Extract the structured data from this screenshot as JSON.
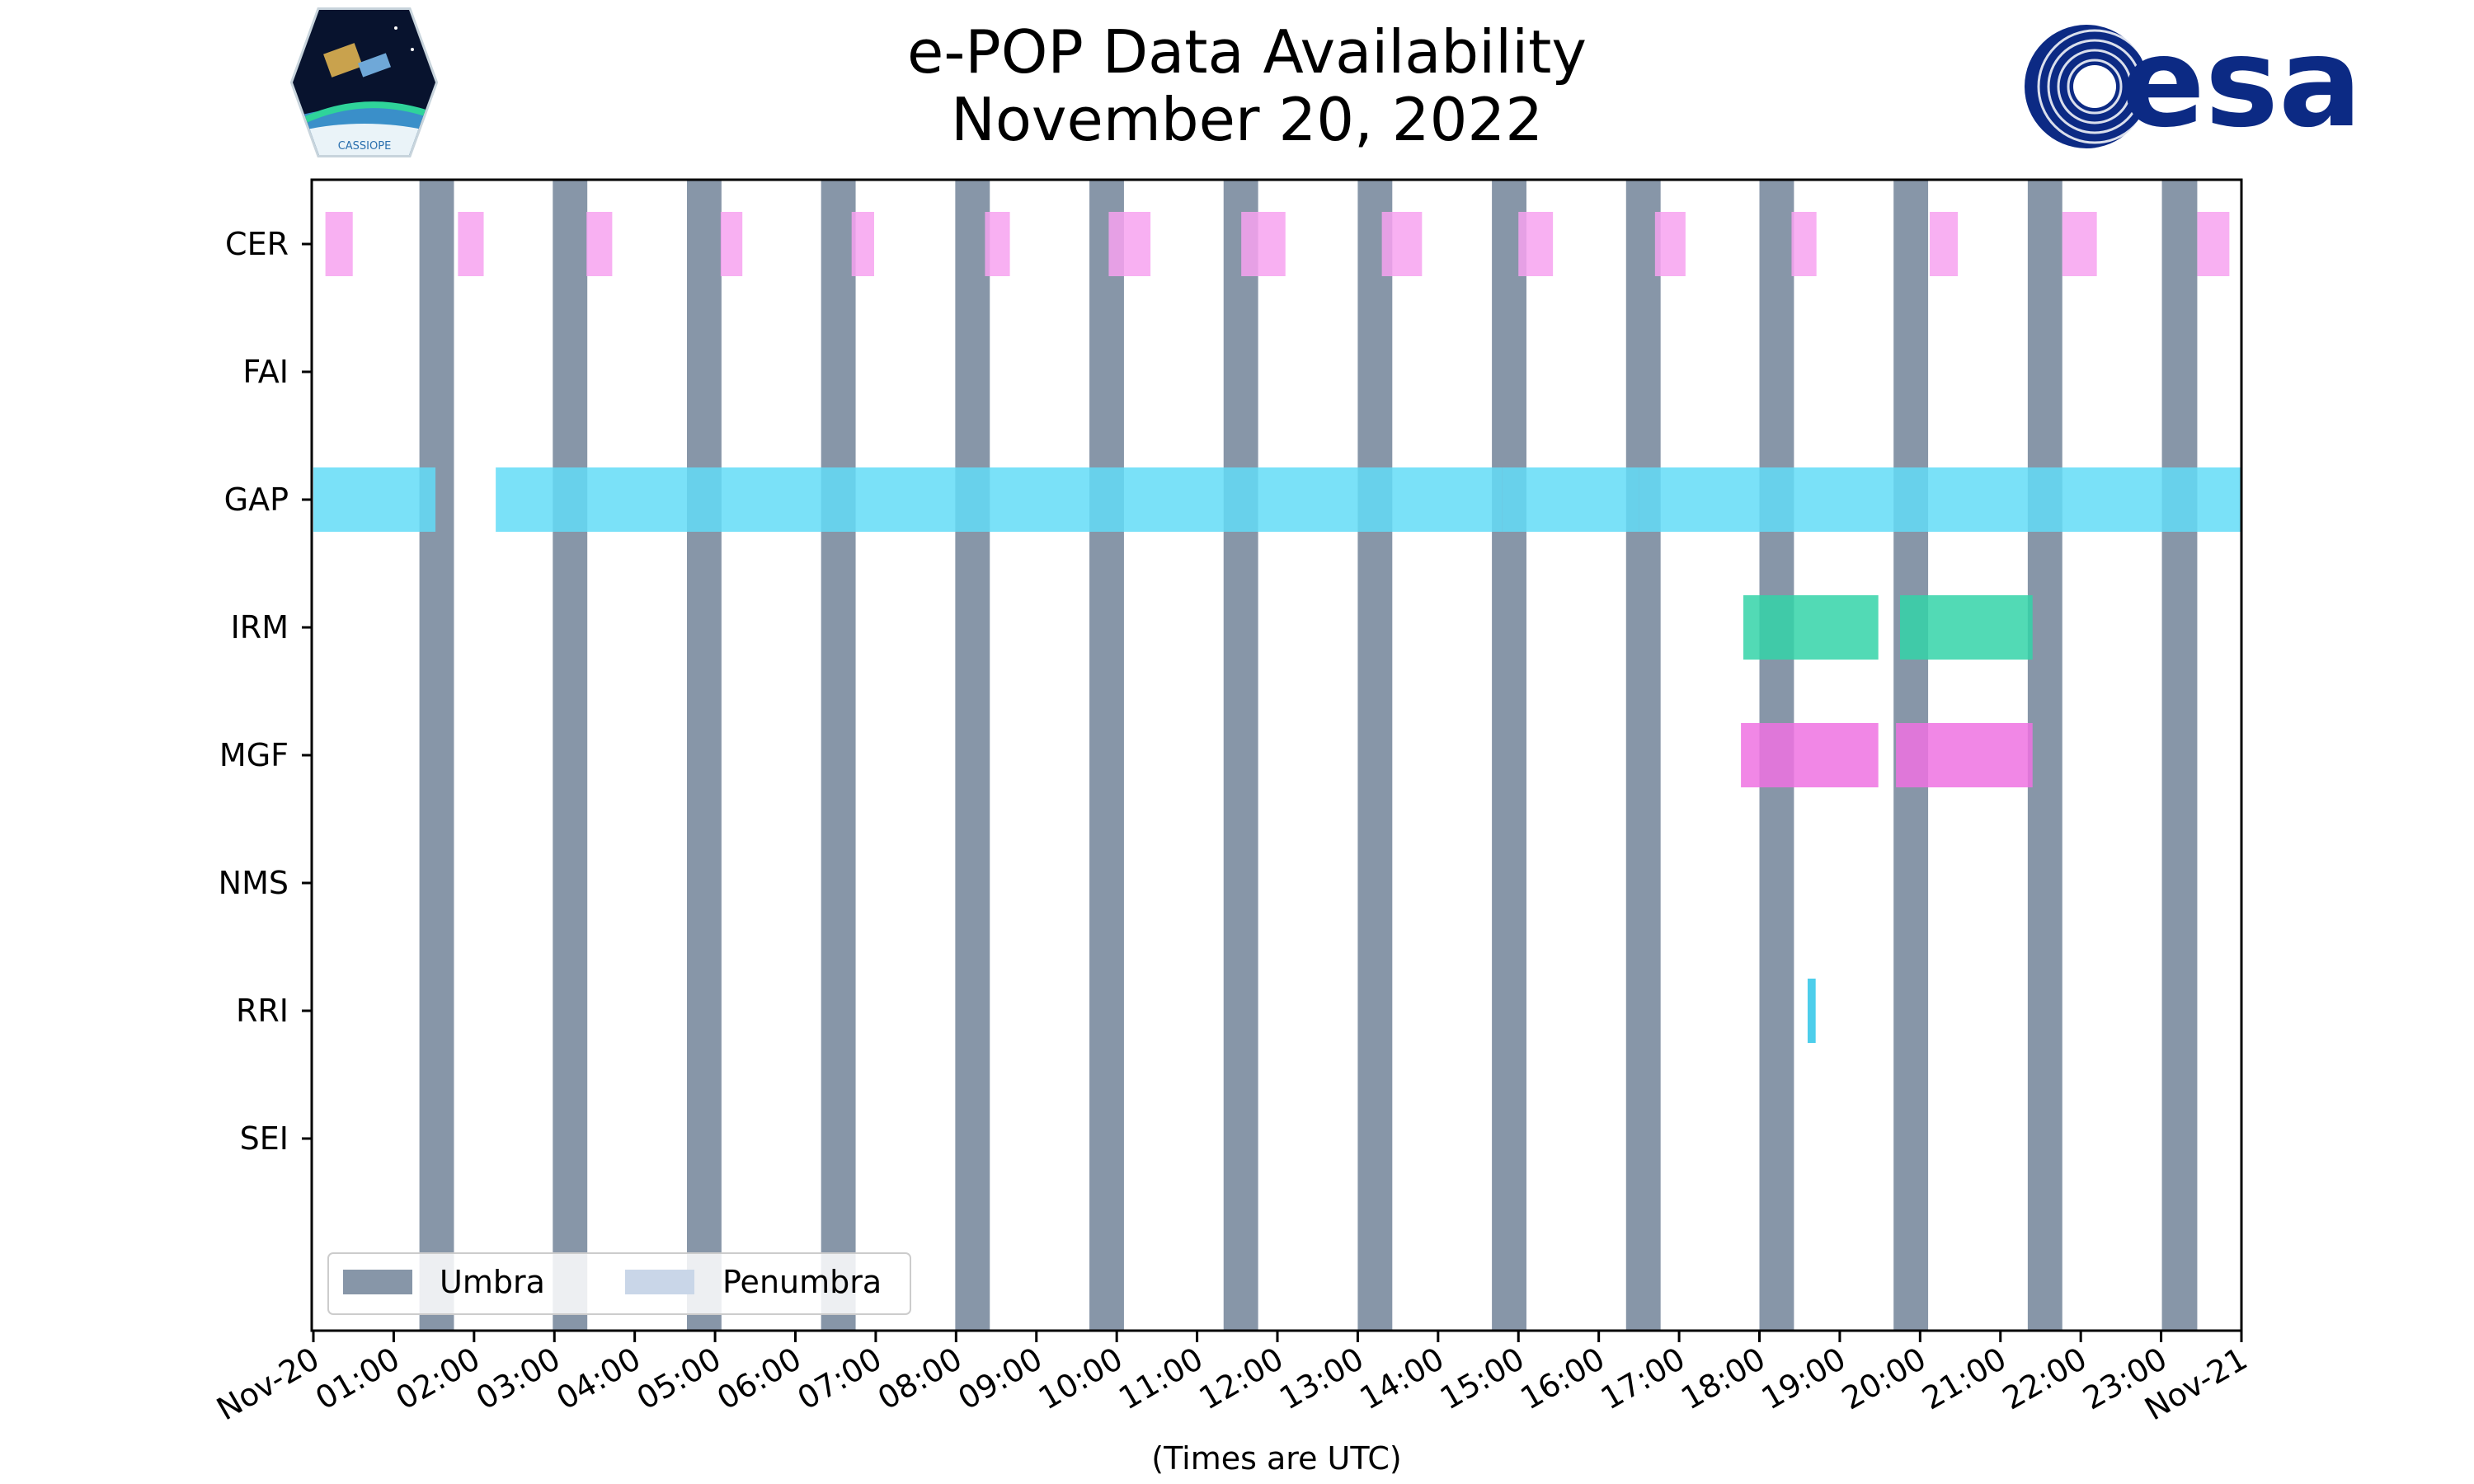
{
  "chart_data": {
    "type": "timeline",
    "title": [
      "e-POP Data Availability",
      "November 20, 2022"
    ],
    "xlabel": "(Times are UTC)",
    "x_range_hours": [
      0,
      24
    ],
    "x_tick_labels": [
      "Nov-20",
      "01:00",
      "02:00",
      "03:00",
      "04:00",
      "05:00",
      "06:00",
      "07:00",
      "08:00",
      "09:00",
      "10:00",
      "11:00",
      "12:00",
      "13:00",
      "14:00",
      "15:00",
      "16:00",
      "17:00",
      "18:00",
      "19:00",
      "20:00",
      "21:00",
      "22:00",
      "23:00",
      "Nov-21"
    ],
    "instruments": [
      "CER",
      "FAI",
      "GAP",
      "IRM",
      "MGF",
      "NMS",
      "RRI",
      "SEI"
    ],
    "umbra_color": "#8796a8",
    "penumbra_color": "#c9d6e8",
    "umbra_intervals": [
      [
        1.32,
        1.75
      ],
      [
        2.98,
        3.41
      ],
      [
        4.65,
        5.08
      ],
      [
        6.32,
        6.75
      ],
      [
        7.99,
        8.42
      ],
      [
        9.66,
        10.09
      ],
      [
        11.33,
        11.76
      ],
      [
        13.0,
        13.43
      ],
      [
        14.67,
        15.1
      ],
      [
        16.34,
        16.77
      ],
      [
        18.0,
        18.43
      ],
      [
        19.67,
        20.1
      ],
      [
        21.34,
        21.77
      ],
      [
        23.01,
        23.45
      ]
    ],
    "series": [
      {
        "name": "CER",
        "color": "#f7a2f0",
        "intervals": [
          [
            0.15,
            0.49
          ],
          [
            1.8,
            2.12
          ],
          [
            3.4,
            3.72
          ],
          [
            5.07,
            5.34
          ],
          [
            6.7,
            6.98
          ],
          [
            8.36,
            8.67
          ],
          [
            9.9,
            10.42
          ],
          [
            11.55,
            12.1
          ],
          [
            13.3,
            13.8
          ],
          [
            15.0,
            15.43
          ],
          [
            16.7,
            17.08
          ],
          [
            18.4,
            18.71
          ],
          [
            20.12,
            20.47
          ],
          [
            21.77,
            22.2
          ],
          [
            23.45,
            23.85
          ]
        ]
      },
      {
        "name": "FAI",
        "color": "#f7a2f0",
        "intervals": []
      },
      {
        "name": "GAP",
        "color": "#63dcf7",
        "intervals": [
          [
            0.0,
            1.52
          ],
          [
            2.27,
            14.8
          ],
          [
            14.8,
            16.5
          ],
          [
            16.5,
            24.0
          ]
        ]
      },
      {
        "name": "IRM",
        "color": "#34d3a8",
        "intervals": [
          [
            17.8,
            19.48
          ],
          [
            19.75,
            21.4
          ]
        ]
      },
      {
        "name": "MGF",
        "color": "#ef72e2",
        "intervals": [
          [
            17.77,
            19.48
          ],
          [
            19.7,
            21.4
          ]
        ]
      },
      {
        "name": "NMS",
        "color": "#2ec6e8",
        "intervals": []
      },
      {
        "name": "RRI",
        "color": "#2ec6e8",
        "intervals": [
          [
            18.6,
            18.7
          ]
        ]
      },
      {
        "name": "SEI",
        "color": "#2ec6e8",
        "intervals": []
      }
    ],
    "legend": {
      "placement": "lower-left",
      "entries": [
        "Umbra",
        "Penumbra"
      ]
    }
  },
  "logos": {
    "left": {
      "name": "cassiope-mission-logo",
      "text": "CASSIOPE"
    },
    "right": {
      "name": "esa-logo",
      "text": "esa",
      "color": "#0c2a84"
    }
  }
}
